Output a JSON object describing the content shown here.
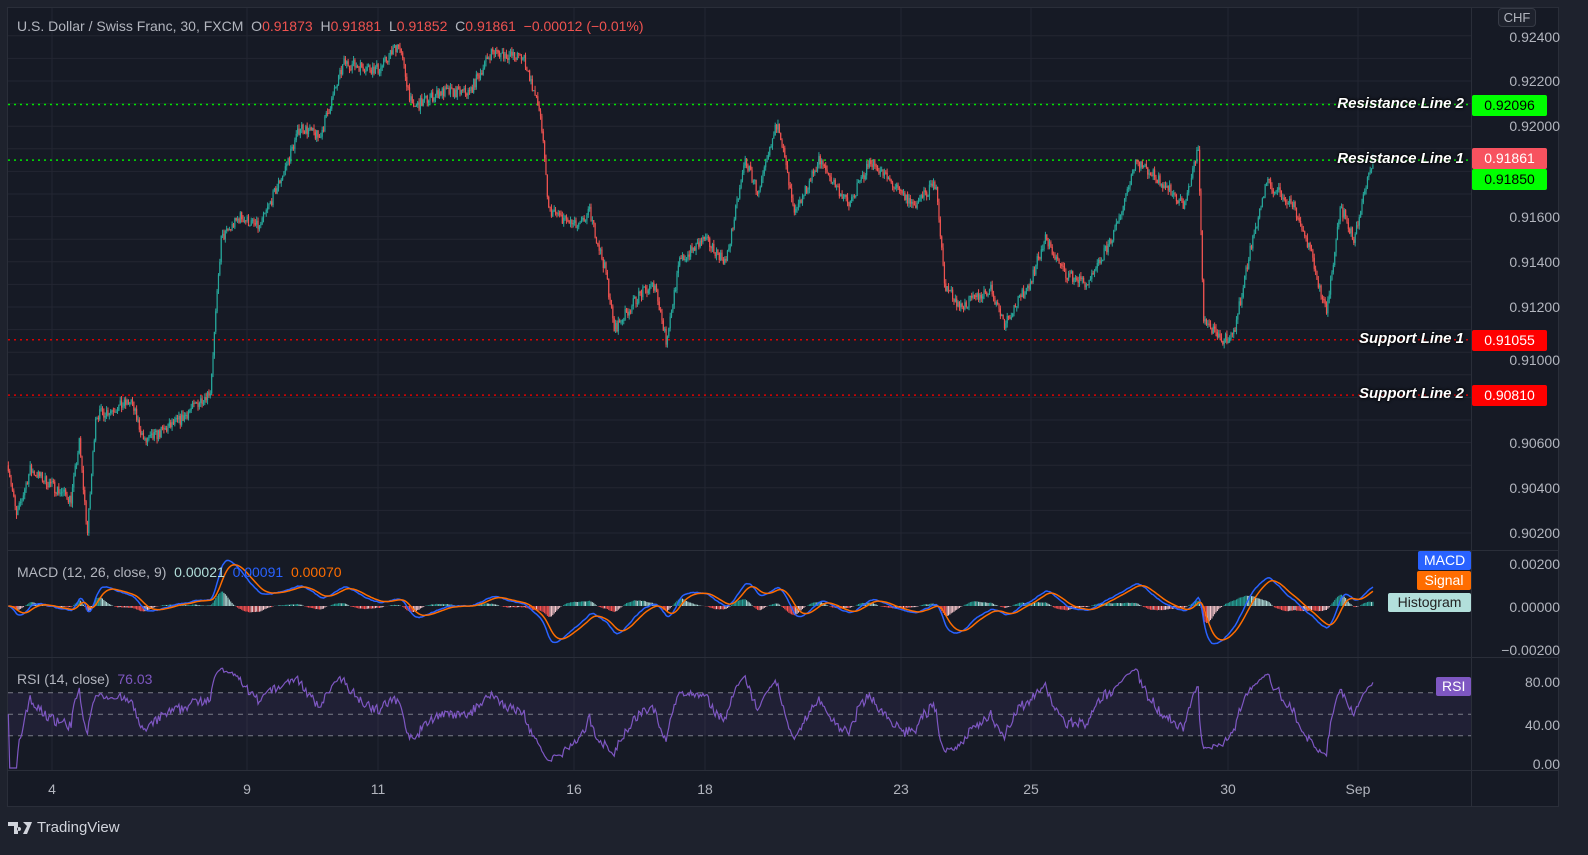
{
  "header": {
    "symbol": "U.S. Dollar / Swiss Franc, 30, FXCM",
    "o_label": "O",
    "o": "0.91873",
    "h_label": "H",
    "h": "0.91881",
    "l_label": "L",
    "l": "0.91852",
    "c_label": "C",
    "c": "0.91861",
    "change": "−0.00012 (−0.01%)"
  },
  "currency": "CHF",
  "colors": {
    "up": "#26a69a",
    "down": "#ef5350",
    "background": "#161a25",
    "grid": "#232632",
    "resistance": "#00e600",
    "support": "#e00000",
    "macd": "#2962ff",
    "signal": "#ff6d00",
    "rsi": "#7e57c2"
  },
  "price_axis": [
    "0.92400",
    "0.92200",
    "0.92000",
    "0.91600",
    "0.91400",
    "0.91200",
    "0.91000",
    "0.90600",
    "0.90400",
    "0.90200"
  ],
  "hlines": [
    {
      "label": "Resistance Line 2",
      "value": "0.92096",
      "color": "#00e600"
    },
    {
      "label": "Resistance Line 1",
      "value": "0.91850",
      "color": "#00e600"
    },
    {
      "label": "Support Line 1",
      "value": "0.91055",
      "color": "#e00000"
    },
    {
      "label": "Support Line 2",
      "value": "0.90810",
      "color": "#e00000"
    }
  ],
  "last_price": "0.91861",
  "macd": {
    "title": "MACD (12, 26, close, 9)",
    "hist": "0.00021",
    "macd": "0.00091",
    "signal": "0.00070",
    "axis": [
      "0.00200",
      "0.00000",
      "−0.00200"
    ],
    "tags": {
      "macd": "MACD",
      "signal": "Signal",
      "hist": "Histogram"
    }
  },
  "rsi": {
    "title": "RSI (14, close)",
    "value": "76.03",
    "axis": [
      "80.00",
      "40.00",
      "0.00"
    ],
    "tag": "RSI",
    "bands": [
      70,
      50,
      30
    ]
  },
  "time_axis": [
    "4",
    "9",
    "11",
    "16",
    "18",
    "23",
    "25",
    "30",
    "Sep"
  ],
  "brand": "TradingView",
  "chart_data": {
    "type": "candlestick",
    "interval": "30",
    "ylim": [
      0.9015,
      0.9247
    ],
    "price_path": [
      [
        "08-03 08:00",
        0.905
      ],
      [
        "08-03 11:00",
        0.9027
      ],
      [
        "08-03 16:00",
        0.9048
      ],
      [
        "08-04 07:00",
        0.9035
      ],
      [
        "08-04 10:00",
        0.906
      ],
      [
        "08-04 13:00",
        0.902
      ],
      [
        "08-04 16:00",
        0.9072
      ],
      [
        "08-05 05:00",
        0.9078
      ],
      [
        "08-05 10:00",
        0.906
      ],
      [
        "08-05 23:00",
        0.907
      ],
      [
        "08-08 10:00",
        0.9083
      ],
      [
        "08-08 14:00",
        0.915
      ],
      [
        "08-08 21:00",
        0.916
      ],
      [
        "08-09 04:00",
        0.9155
      ],
      [
        "08-09 13:00",
        0.918
      ],
      [
        "08-09 19:00",
        0.92
      ],
      [
        "08-10 02:00",
        0.9195
      ],
      [
        "08-10 11:00",
        0.9228
      ],
      [
        "08-11 00:00",
        0.9225
      ],
      [
        "08-11 07:00",
        0.9237
      ],
      [
        "08-11 12:00",
        0.9208
      ],
      [
        "08-11 22:00",
        0.9215
      ],
      [
        "08-12 09:00",
        0.9215
      ],
      [
        "08-12 17:00",
        0.9233
      ],
      [
        "08-15 05:00",
        0.923
      ],
      [
        "08-15 11:00",
        0.9205
      ],
      [
        "08-15 14:00",
        0.9163
      ],
      [
        "08-16 01:00",
        0.9155
      ],
      [
        "08-16 05:00",
        0.9162
      ],
      [
        "08-16 11:00",
        0.9135
      ],
      [
        "08-16 14:00",
        0.911
      ],
      [
        "08-16 23:00",
        0.9125
      ],
      [
        "08-17 05:00",
        0.913
      ],
      [
        "08-17 09:00",
        0.9105
      ],
      [
        "08-17 14:00",
        0.914
      ],
      [
        "08-17 23:00",
        0.915
      ],
      [
        "08-18 07:00",
        0.914
      ],
      [
        "08-18 14:00",
        0.9185
      ],
      [
        "08-18 19:00",
        0.917
      ],
      [
        "08-19 02:00",
        0.9203
      ],
      [
        "08-19 08:00",
        0.916
      ],
      [
        "08-19 17:00",
        0.9185
      ],
      [
        "08-22 04:00",
        0.9165
      ],
      [
        "08-22 12:00",
        0.9185
      ],
      [
        "08-22 23:00",
        0.917
      ],
      [
        "08-23 04:00",
        0.9165
      ],
      [
        "08-23 12:00",
        0.9175
      ],
      [
        "08-23 15:00",
        0.913
      ],
      [
        "08-23 21:00",
        0.912
      ],
      [
        "08-24 08:00",
        0.9128
      ],
      [
        "08-24 13:00",
        0.9113
      ],
      [
        "08-24 22:00",
        0.913
      ],
      [
        "08-25 04:00",
        0.915
      ],
      [
        "08-25 11:00",
        0.9135
      ],
      [
        "08-25 20:00",
        0.913
      ],
      [
        "08-26 06:00",
        0.9155
      ],
      [
        "08-26 13:00",
        0.9185
      ],
      [
        "08-26 23:00",
        0.9175
      ],
      [
        "08-29 07:00",
        0.9165
      ],
      [
        "08-29 12:00",
        0.919
      ],
      [
        "08-29 14:00",
        0.9115
      ],
      [
        "08-29 20:00",
        0.9105
      ],
      [
        "08-30 01:00",
        0.9108
      ],
      [
        "08-30 07:00",
        0.9145
      ],
      [
        "08-30 13:00",
        0.9175
      ],
      [
        "08-30 23:00",
        0.9165
      ],
      [
        "08-31 05:00",
        0.9145
      ],
      [
        "08-31 11:00",
        0.9117
      ],
      [
        "08-31 16:00",
        0.9165
      ],
      [
        "08-31 21:00",
        0.915
      ],
      [
        "09-01 04:00",
        0.91861
      ]
    ]
  }
}
